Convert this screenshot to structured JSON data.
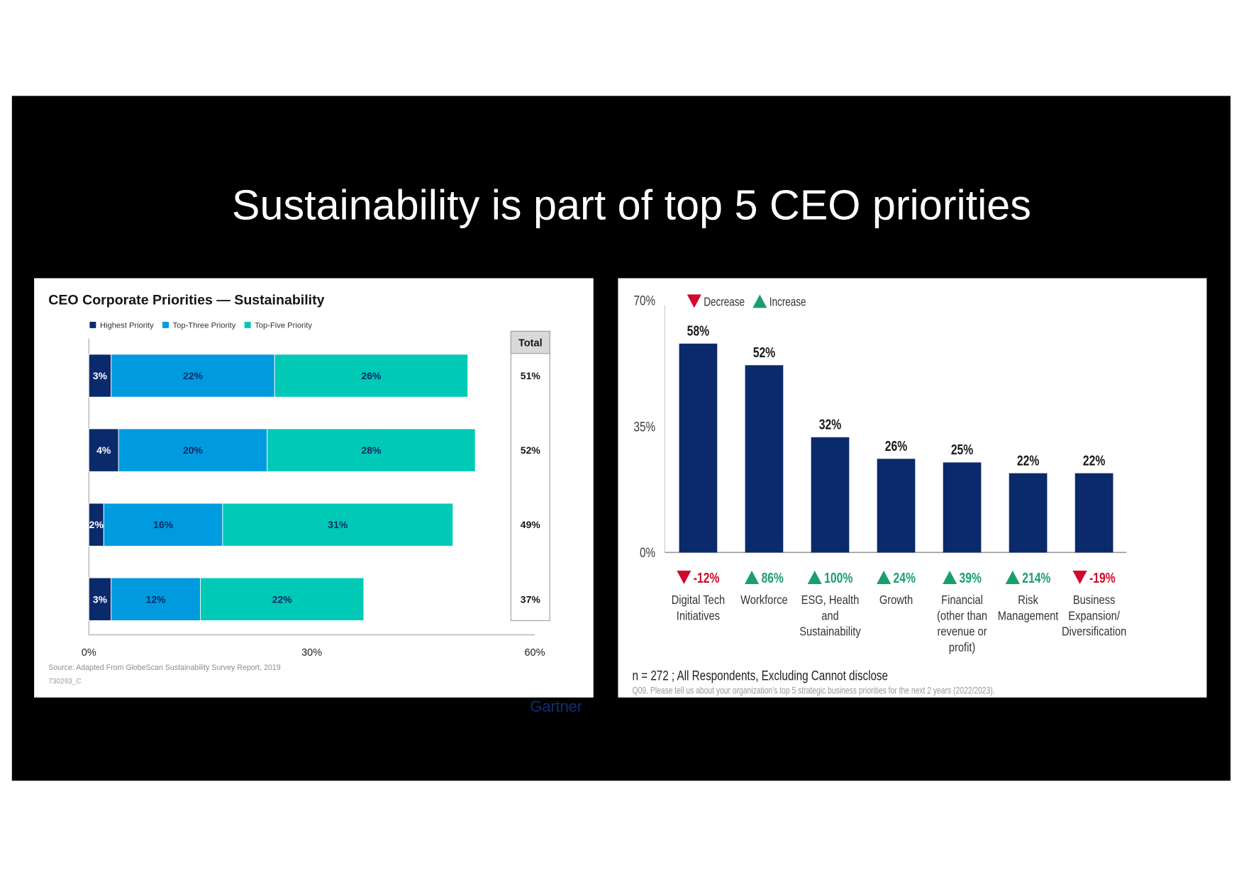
{
  "slide": {
    "title": "Sustainability is part of top 5 CEO priorities",
    "background": "#000000"
  },
  "logo": {
    "text": "Gartner",
    "color": "#0e2f6e"
  },
  "chart_data": [
    {
      "type": "bar",
      "orientation": "horizontal",
      "stacked": true,
      "title": "CEO Corporate Priorities — Sustainability",
      "unit": "%",
      "series": [
        {
          "name": "Highest Priority",
          "values": [
            3,
            4,
            2,
            3
          ],
          "color": "#0b2a6b",
          "label_color": "#ffffff"
        },
        {
          "name": "Top-Three Priority",
          "values": [
            22,
            20,
            16,
            12
          ],
          "color": "#009ade",
          "label_color": "#0b2a6b"
        },
        {
          "name": "Top-Five Priority",
          "values": [
            26,
            28,
            31,
            22
          ],
          "color": "#00c9b5",
          "label_color": "#0b2a6b"
        }
      ],
      "totals_header": "Total",
      "totals": [
        51,
        52,
        49,
        37
      ],
      "xlim": [
        0,
        60
      ],
      "xticks": [
        0,
        30,
        60
      ],
      "legend": "top-left",
      "grid": false,
      "source": "Source: Adapted From GlobeScan Sustainability Survey Report, 2019",
      "code": "730293_C"
    },
    {
      "type": "bar",
      "orientation": "vertical",
      "unit": "%",
      "categories": [
        [
          "Digital Tech",
          "Initiatives"
        ],
        [
          "Workforce"
        ],
        [
          "ESG, Health",
          "and",
          "Sustainability"
        ],
        [
          "Growth"
        ],
        [
          "Financial",
          "(other than",
          "revenue or",
          "profit)"
        ],
        [
          "Risk",
          "Management"
        ],
        [
          "Business",
          "Expansion/",
          "Diversification"
        ]
      ],
      "values": [
        58,
        52,
        32,
        26,
        25,
        22,
        22
      ],
      "change": [
        -12,
        86,
        100,
        24,
        39,
        214,
        -19
      ],
      "ylim": [
        0,
        70
      ],
      "yticks": [
        0,
        35,
        70
      ],
      "bar_color": "#0b2a6b",
      "legend": {
        "placement": "top-left",
        "decrease": "Decrease",
        "increase": "Increase",
        "decrease_color": "#cf0a2c",
        "increase_color": "#1a9f6c"
      },
      "grid": false,
      "note": "n = 272 ; All Respondents, Excluding Cannot disclose",
      "question": "Q09. Please tell us about your organization’s top 5 strategic business priorities for the next 2 years (2022/2023)."
    }
  ]
}
